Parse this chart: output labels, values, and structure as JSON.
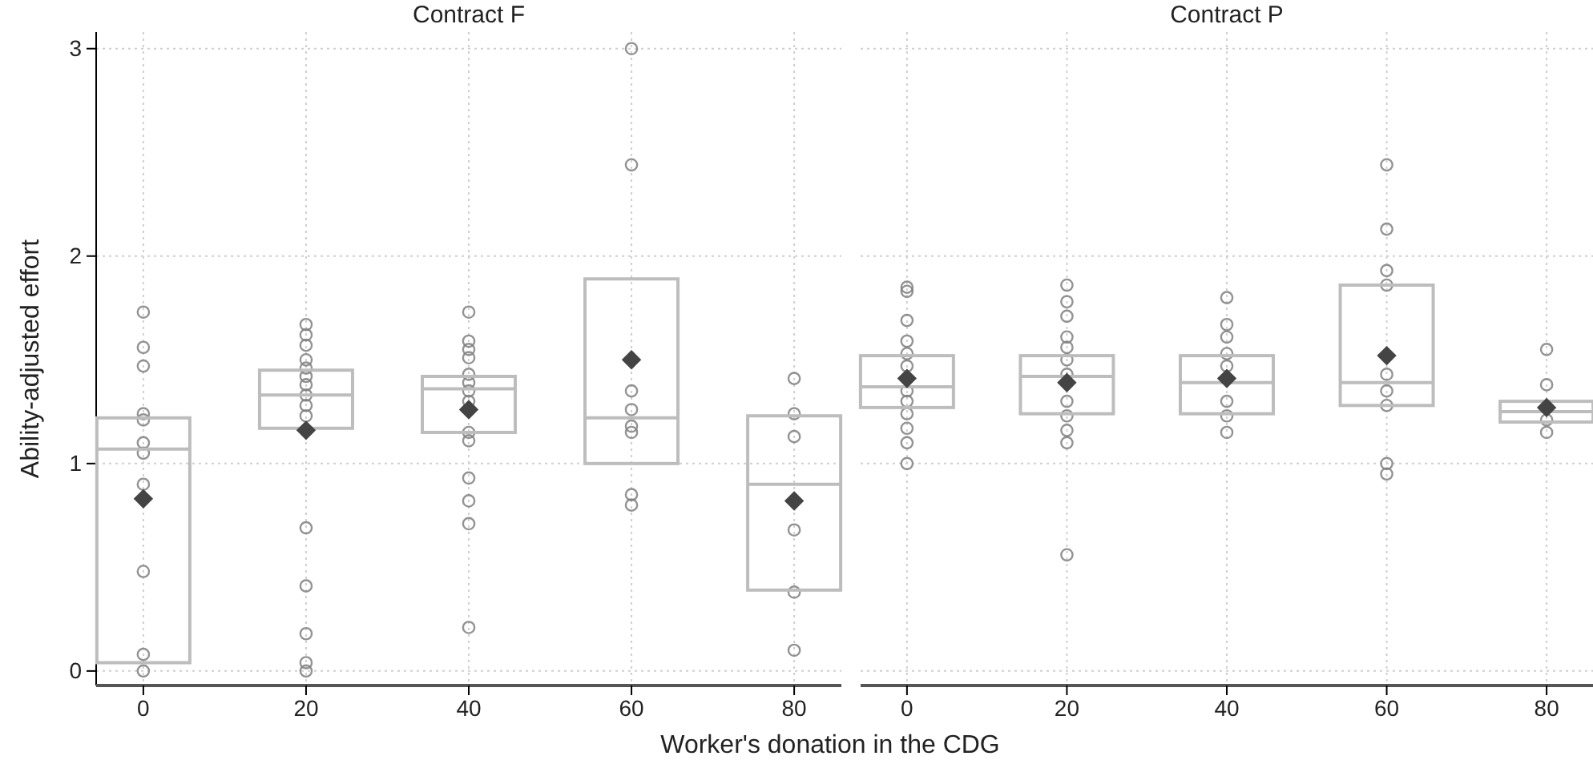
{
  "chart_data": [
    {
      "type": "box",
      "title": "Contract F",
      "xlabel": "Worker's donation in the CDG",
      "ylabel": "Ability-adjusted effort",
      "categories": [
        "0",
        "20",
        "40",
        "60",
        "80"
      ],
      "ylim": [
        -0.07,
        3.08
      ],
      "yticks": [
        0,
        1,
        2,
        3
      ],
      "grid": true,
      "series": [
        {
          "type": "box",
          "color": "#bdbdbd",
          "boxes": [
            {
              "low": 0.04,
              "q1": 0.04,
              "median": 1.07,
              "q3": 1.22,
              "high": 1.22,
              "mean": 0.83
            },
            {
              "low": 1.17,
              "q1": 1.17,
              "median": 1.33,
              "q3": 1.45,
              "high": 1.45,
              "mean": 1.16
            },
            {
              "low": 1.15,
              "q1": 1.15,
              "median": 1.36,
              "q3": 1.42,
              "high": 1.42,
              "mean": 1.26
            },
            {
              "low": 1.0,
              "q1": 1.0,
              "median": 1.22,
              "q3": 1.89,
              "high": 1.89,
              "mean": 1.5
            },
            {
              "low": 0.39,
              "q1": 0.39,
              "median": 0.9,
              "q3": 1.23,
              "high": 1.23,
              "mean": 0.82
            }
          ]
        },
        {
          "type": "scatter",
          "color": "#808080",
          "marker": "circle",
          "x": [
            "0",
            "0",
            "0",
            "0",
            "0",
            "0",
            "0",
            "0",
            "0",
            "0",
            "0",
            "20",
            "20",
            "20",
            "20",
            "20",
            "20",
            "20",
            "20",
            "20",
            "20",
            "20",
            "20",
            "20",
            "20",
            "20",
            "40",
            "40",
            "40",
            "40",
            "40",
            "40",
            "40",
            "40",
            "40",
            "40",
            "40",
            "40",
            "40",
            "40",
            "60",
            "60",
            "60",
            "60",
            "60",
            "60",
            "60",
            "60",
            "80",
            "80",
            "80",
            "80",
            "80",
            "80"
          ],
          "values": [
            1.73,
            1.56,
            1.47,
            1.24,
            1.21,
            1.1,
            1.05,
            0.9,
            0.48,
            0.08,
            0,
            1.67,
            1.62,
            1.57,
            1.5,
            1.46,
            1.42,
            1.38,
            1.33,
            1.28,
            1.23,
            0.69,
            0.41,
            0.18,
            0.04,
            0,
            1.73,
            1.59,
            1.55,
            1.51,
            1.43,
            1.39,
            1.35,
            1.3,
            1.15,
            1.11,
            0.93,
            0.82,
            0.71,
            0.21,
            3.0,
            2.44,
            1.35,
            1.26,
            1.18,
            1.15,
            0.85,
            0.8,
            1.41,
            1.24,
            1.13,
            0.68,
            0.38,
            0.1
          ]
        }
      ]
    },
    {
      "type": "box",
      "title": "Contract P",
      "categories": [
        "0",
        "20",
        "40",
        "60",
        "80"
      ],
      "ylim": [
        -0.07,
        3.08
      ],
      "yticks": [
        0,
        1,
        2,
        3
      ],
      "tick_labels": "x",
      "grid": true,
      "series": [
        {
          "type": "box",
          "color": "#bdbdbd",
          "boxes": [
            {
              "low": 1.27,
              "q1": 1.27,
              "median": 1.37,
              "q3": 1.52,
              "high": 1.52,
              "mean": 1.41
            },
            {
              "low": 1.24,
              "q1": 1.24,
              "median": 1.42,
              "q3": 1.52,
              "high": 1.52,
              "mean": 1.39
            },
            {
              "low": 1.24,
              "q1": 1.24,
              "median": 1.39,
              "q3": 1.52,
              "high": 1.52,
              "mean": 1.41
            },
            {
              "low": 1.28,
              "q1": 1.28,
              "median": 1.39,
              "q3": 1.86,
              "high": 1.86,
              "mean": 1.52
            },
            {
              "low": 1.2,
              "q1": 1.2,
              "median": 1.25,
              "q3": 1.3,
              "high": 1.3,
              "mean": 1.27
            }
          ]
        },
        {
          "type": "scatter",
          "color": "#808080",
          "marker": "circle",
          "x": [
            "0",
            "0",
            "0",
            "0",
            "0",
            "0",
            "0",
            "0",
            "0",
            "0",
            "0",
            "0",
            "20",
            "20",
            "20",
            "20",
            "20",
            "20",
            "20",
            "20",
            "20",
            "20",
            "20",
            "20",
            "40",
            "40",
            "40",
            "40",
            "40",
            "40",
            "40",
            "40",
            "60",
            "60",
            "60",
            "60",
            "60",
            "60",
            "60",
            "60",
            "60",
            "80",
            "80",
            "80",
            "80"
          ],
          "values": [
            1.85,
            1.83,
            1.69,
            1.59,
            1.53,
            1.47,
            1.35,
            1.3,
            1.24,
            1.17,
            1.1,
            1.0,
            1.86,
            1.78,
            1.71,
            1.61,
            1.56,
            1.5,
            1.43,
            1.3,
            1.23,
            1.16,
            1.1,
            0.56,
            1.8,
            1.67,
            1.61,
            1.53,
            1.47,
            1.3,
            1.23,
            1.15,
            2.44,
            2.13,
            1.93,
            1.86,
            1.43,
            1.35,
            1.28,
            1.0,
            0.95,
            1.55,
            1.38,
            1.21,
            1.15
          ]
        }
      ]
    }
  ]
}
